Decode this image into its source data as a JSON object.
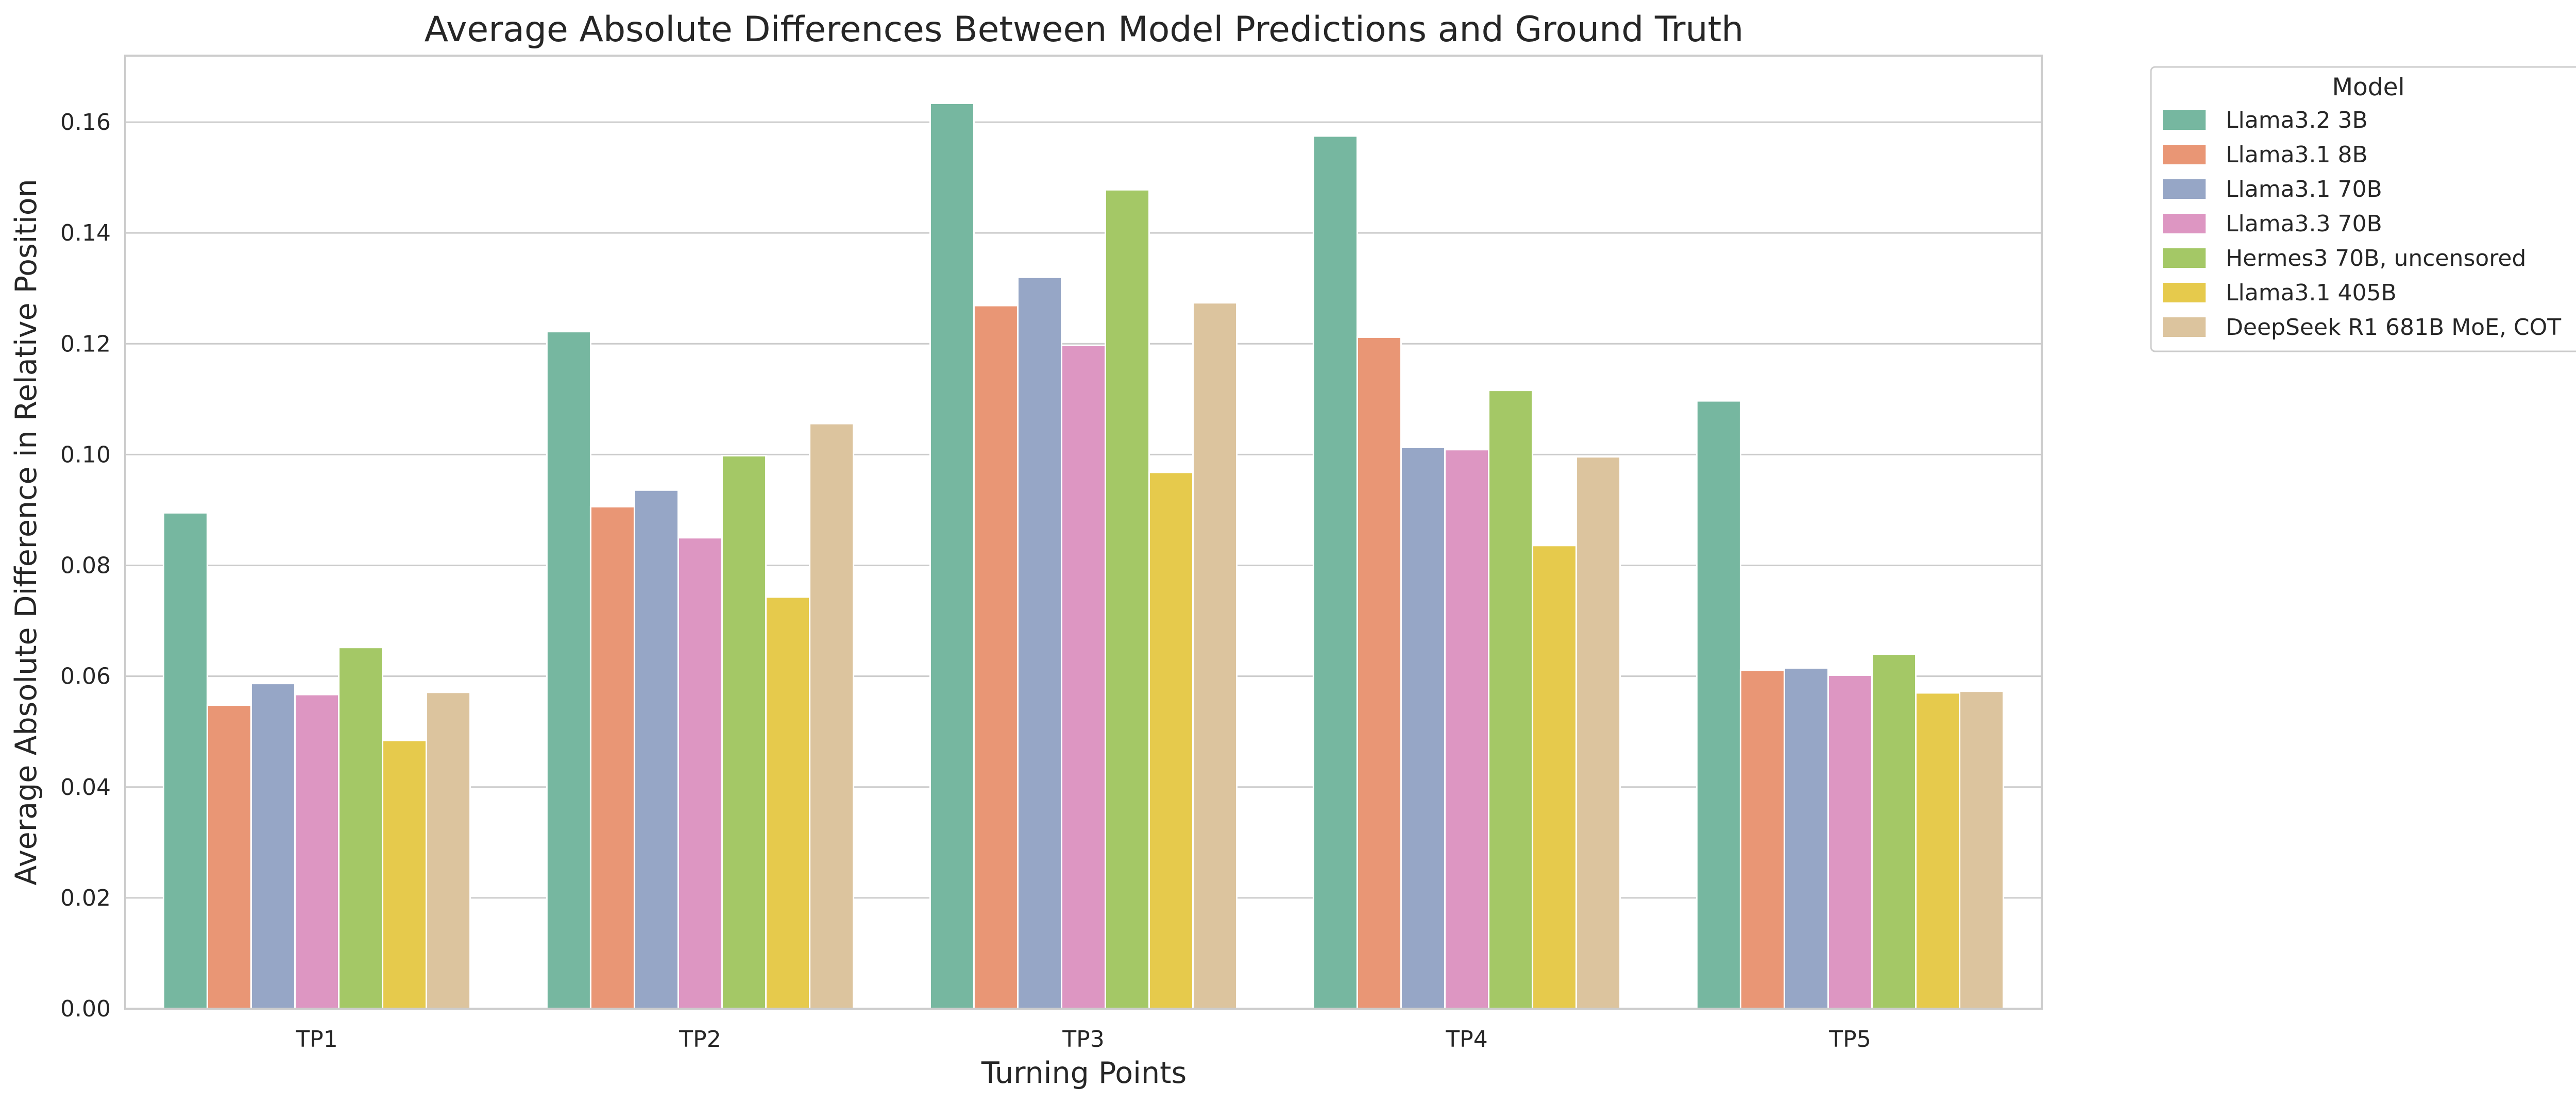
{
  "chart_data": {
    "type": "bar",
    "title": "Average Absolute Differences Between Model Predictions and Ground Truth",
    "xlabel": "Turning Points",
    "ylabel": "Average Absolute Difference in Relative Position",
    "ylim": [
      0,
      0.172
    ],
    "yticks": [
      "0.00",
      "0.02",
      "0.04",
      "0.06",
      "0.08",
      "0.10",
      "0.12",
      "0.14",
      "0.16"
    ],
    "grid": "horizontal",
    "categories": [
      "TP1",
      "TP2",
      "TP3",
      "TP4",
      "TP5"
    ],
    "legend": {
      "title": "Model",
      "placement": "outside-top-right"
    },
    "series": [
      {
        "name": "Llama3.2 3B",
        "color": "#76b7a0",
        "values": [
          0.0895,
          0.1222,
          0.1634,
          0.1575,
          0.1097
        ]
      },
      {
        "name": "Llama3.1 8B",
        "color": "#e99675",
        "values": [
          0.0548,
          0.0906,
          0.1269,
          0.1212,
          0.0611
        ]
      },
      {
        "name": "Llama3.1 70B",
        "color": "#96a6c6",
        "values": [
          0.0587,
          0.0936,
          0.132,
          0.1013,
          0.0615
        ]
      },
      {
        "name": "Llama3.3 70B",
        "color": "#dd96c2",
        "values": [
          0.0567,
          0.085,
          0.1197,
          0.1009,
          0.0602
        ]
      },
      {
        "name": "Hermes3 70B, uncensored",
        "color": "#a4c866",
        "values": [
          0.0652,
          0.0998,
          0.1478,
          0.1116,
          0.064
        ]
      },
      {
        "name": "Llama3.1 405B",
        "color": "#e6ca4c",
        "values": [
          0.0484,
          0.0743,
          0.0968,
          0.0836,
          0.057
        ]
      },
      {
        "name": "DeepSeek R1 681B MoE, COT",
        "color": "#dcc49e",
        "values": [
          0.0571,
          0.1056,
          0.1274,
          0.0996,
          0.0573
        ]
      }
    ]
  }
}
